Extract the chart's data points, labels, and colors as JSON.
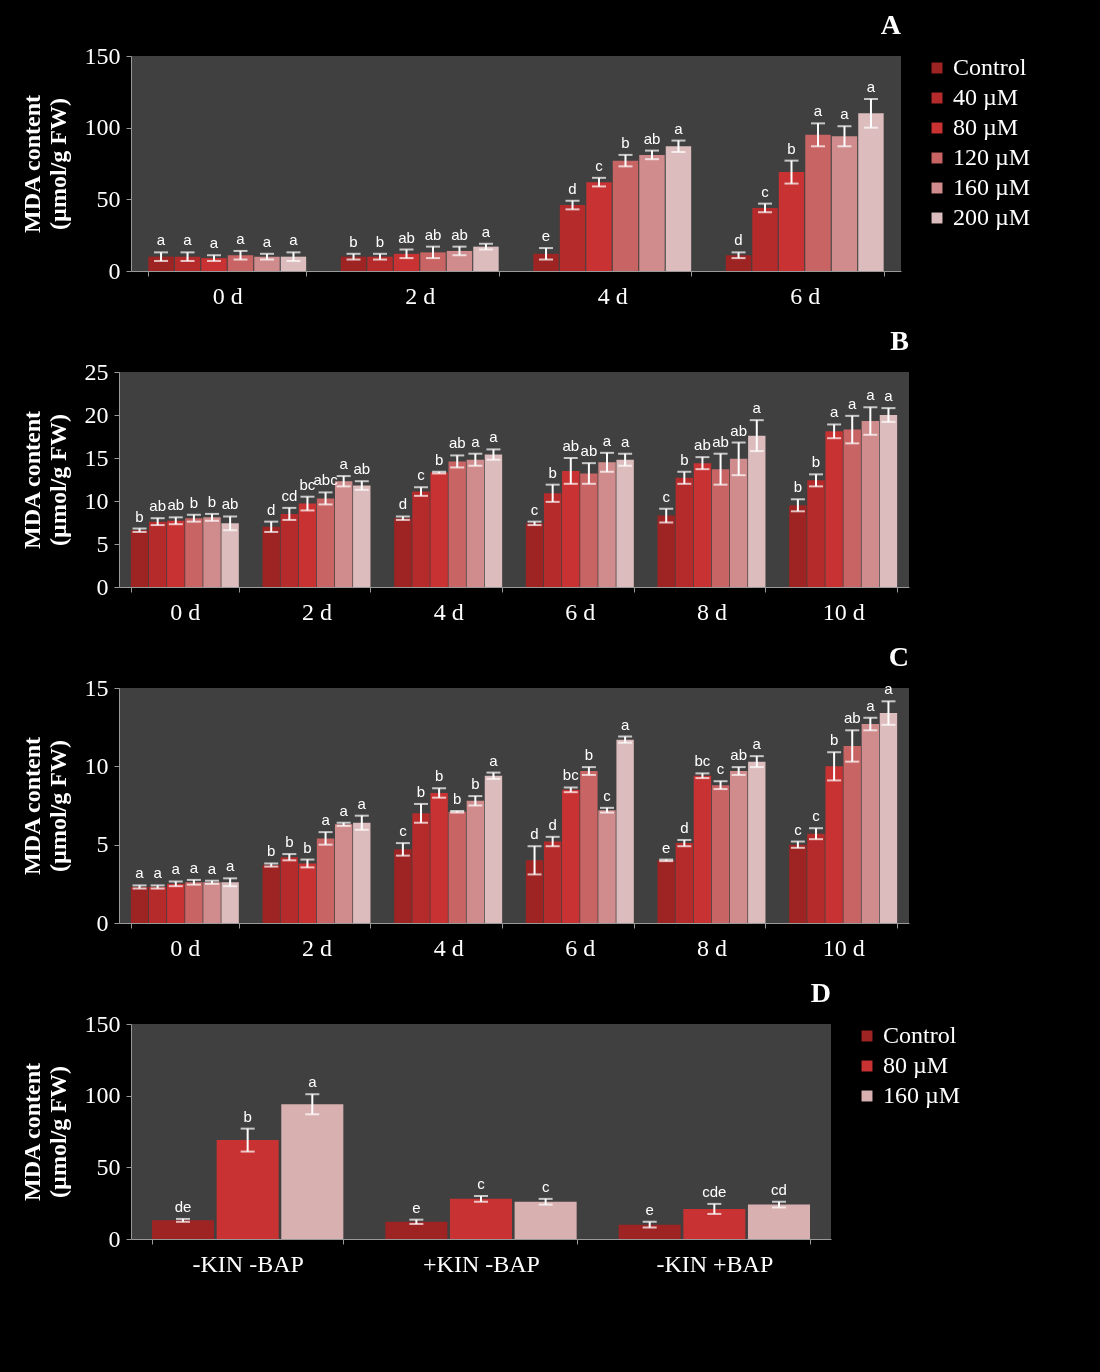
{
  "chart_data": [
    {
      "type": "bar",
      "title": "A",
      "ylabel": "MDA content\n(µmol/g FW)",
      "categories": [
        "0 d",
        "2 d",
        "4 d",
        "6 d"
      ],
      "ylim": [
        0,
        150
      ],
      "yticks": [
        0,
        50,
        100,
        150
      ],
      "legend": "right",
      "series": [
        {
          "name": "Control",
          "color": "#9e2424",
          "values": [
            10,
            10,
            12,
            11
          ],
          "errors": [
            3,
            2,
            4,
            2
          ],
          "value_labels": [
            "a",
            "b",
            "e",
            "d"
          ]
        },
        {
          "name": "40 µM",
          "color": "#b52a2a",
          "values": [
            10,
            10,
            46,
            44
          ],
          "errors": [
            3,
            2,
            3,
            3
          ],
          "value_labels": [
            "a",
            "b",
            "d",
            "c"
          ]
        },
        {
          "name": "80 µM",
          "color": "#c83232",
          "values": [
            9,
            12,
            62,
            69
          ],
          "errors": [
            2,
            3,
            3,
            8
          ],
          "value_labels": [
            "a",
            "ab",
            "c",
            "b"
          ]
        },
        {
          "name": "120 µM",
          "color": "#c86464",
          "values": [
            11,
            13,
            77,
            95
          ],
          "errors": [
            3,
            4,
            4,
            8
          ],
          "value_labels": [
            "a",
            "ab",
            "b",
            "a"
          ]
        },
        {
          "name": "160 µM",
          "color": "#d08c8c",
          "values": [
            10,
            14,
            81,
            94
          ],
          "errors": [
            2,
            3,
            3,
            7
          ],
          "value_labels": [
            "a",
            "ab",
            "ab",
            "a"
          ]
        },
        {
          "name": "200 µM",
          "color": "#dcbcbc",
          "values": [
            10,
            17,
            87,
            110
          ],
          "errors": [
            3,
            2,
            4,
            10
          ],
          "value_labels": [
            "a",
            "a",
            "a",
            "a"
          ]
        }
      ]
    },
    {
      "type": "bar",
      "title": "B",
      "ylabel": "MDA content\n(µmol/g FW)",
      "categories": [
        "0 d",
        "2 d",
        "4 d",
        "6 d",
        "8 d",
        "10 d"
      ],
      "ylim": [
        0,
        25
      ],
      "yticks": [
        0,
        5,
        10,
        15,
        20,
        25
      ],
      "series": [
        {
          "color": "#9e2424",
          "values": [
            6.6,
            7.0,
            8.0,
            7.4,
            8.3,
            9.5
          ],
          "errors": [
            0.2,
            0.6,
            0.2,
            0.2,
            0.8,
            0.7
          ],
          "value_labels": [
            "b",
            "d",
            "d",
            "c",
            "c",
            "b"
          ]
        },
        {
          "color": "#b52a2a",
          "values": [
            7.6,
            8.5,
            11.1,
            10.9,
            12.7,
            12.4
          ],
          "errors": [
            0.4,
            0.7,
            0.5,
            1.0,
            0.7,
            0.7
          ],
          "value_labels": [
            "ab",
            "cd",
            "c",
            "b",
            "b",
            "b"
          ]
        },
        {
          "color": "#c83232",
          "values": [
            7.7,
            9.7,
            13.3,
            13.5,
            14.4,
            18.1
          ],
          "errors": [
            0.4,
            0.8,
            0.1,
            1.5,
            0.7,
            0.8
          ],
          "value_labels": [
            "ab",
            "bc",
            "b",
            "ab",
            "ab",
            "a"
          ]
        },
        {
          "color": "#c86464",
          "values": [
            8.0,
            10.3,
            14.6,
            13.2,
            13.7,
            18.3
          ],
          "errors": [
            0.4,
            0.7,
            0.7,
            1.2,
            1.8,
            1.6
          ],
          "value_labels": [
            "b",
            "abc",
            "ab",
            "ab",
            "ab",
            "a"
          ]
        },
        {
          "color": "#d08c8c",
          "values": [
            8.1,
            12.3,
            14.8,
            14.5,
            14.9,
            19.3
          ],
          "errors": [
            0.4,
            0.6,
            0.7,
            1.1,
            1.9,
            1.6
          ],
          "value_labels": [
            "b",
            "a",
            "a",
            "a",
            "ab",
            "a"
          ]
        },
        {
          "color": "#dcbcbc",
          "values": [
            7.4,
            11.8,
            15.4,
            14.8,
            17.6,
            20.0
          ],
          "errors": [
            0.8,
            0.5,
            0.6,
            0.7,
            1.8,
            0.8
          ],
          "value_labels": [
            "ab",
            "ab",
            "a",
            "a",
            "a",
            "a"
          ]
        }
      ]
    },
    {
      "type": "bar",
      "title": "C",
      "ylabel": "MDA content\n(µmol/g FW)",
      "categories": [
        "0 d",
        "2 d",
        "4 d",
        "6 d",
        "8 d",
        "10 d"
      ],
      "ylim": [
        0,
        15
      ],
      "yticks": [
        0,
        5,
        10,
        15
      ],
      "series": [
        {
          "color": "#9e2424",
          "values": [
            2.3,
            3.7,
            4.7,
            4.0,
            4.0,
            5.0
          ],
          "errors": [
            0.1,
            0.1,
            0.4,
            0.9,
            0.05,
            0.2
          ],
          "value_labels": [
            "a",
            "b",
            "c",
            "d",
            "e",
            "c"
          ]
        },
        {
          "color": "#b52a2a",
          "values": [
            2.3,
            4.2,
            7.0,
            5.2,
            5.1,
            5.7
          ],
          "errors": [
            0.1,
            0.2,
            0.6,
            0.3,
            0.2,
            0.35
          ],
          "value_labels": [
            "a",
            "b",
            "b",
            "d",
            "d",
            "c"
          ]
        },
        {
          "color": "#c83232",
          "values": [
            2.5,
            3.8,
            8.3,
            8.5,
            9.4,
            10.0
          ],
          "errors": [
            0.15,
            0.25,
            0.3,
            0.15,
            0.15,
            0.9
          ],
          "value_labels": [
            "a",
            "b",
            "b",
            "bc",
            "bc",
            "b"
          ]
        },
        {
          "color": "#c86464",
          "values": [
            2.6,
            5.4,
            7.1,
            9.7,
            8.8,
            11.3
          ],
          "errors": [
            0.15,
            0.4,
            0.05,
            0.25,
            0.25,
            1.0
          ],
          "value_labels": [
            "a",
            "a",
            "b",
            "b",
            "c",
            "ab"
          ]
        },
        {
          "color": "#d08c8c",
          "values": [
            2.6,
            6.3,
            7.8,
            7.2,
            9.7,
            12.7
          ],
          "errors": [
            0.1,
            0.1,
            0.3,
            0.15,
            0.25,
            0.4
          ],
          "value_labels": [
            "a",
            "a",
            "b",
            "c",
            "ab",
            "a"
          ]
        },
        {
          "color": "#dcbcbc",
          "values": [
            2.6,
            6.4,
            9.4,
            11.7,
            10.3,
            13.4
          ],
          "errors": [
            0.25,
            0.45,
            0.2,
            0.2,
            0.35,
            0.75
          ],
          "value_labels": [
            "a",
            "a",
            "a",
            "a",
            "a",
            "a"
          ]
        }
      ]
    },
    {
      "type": "bar",
      "title": "D",
      "ylabel": "MDA content\n(µmol/g FW)",
      "categories": [
        "-KIN -BAP",
        "+KIN -BAP",
        "-KIN +BAP"
      ],
      "ylim": [
        0,
        150
      ],
      "yticks": [
        0,
        50,
        100,
        150
      ],
      "legend": "right",
      "series": [
        {
          "name": "Control",
          "color": "#9e2424",
          "values": [
            13,
            12,
            10
          ],
          "errors": [
            1,
            1.5,
            2
          ],
          "value_labels": [
            "de",
            "e",
            "e"
          ]
        },
        {
          "name": "80 µM",
          "color": "#c83232",
          "values": [
            69,
            28,
            21
          ],
          "errors": [
            8,
            2,
            3.5
          ],
          "value_labels": [
            "b",
            "c",
            "cde"
          ]
        },
        {
          "name": "160 µM",
          "color": "#d8b0b0",
          "values": [
            94,
            26,
            24
          ],
          "errors": [
            7,
            2,
            2
          ],
          "value_labels": [
            "a",
            "c",
            "cd"
          ]
        }
      ]
    }
  ]
}
